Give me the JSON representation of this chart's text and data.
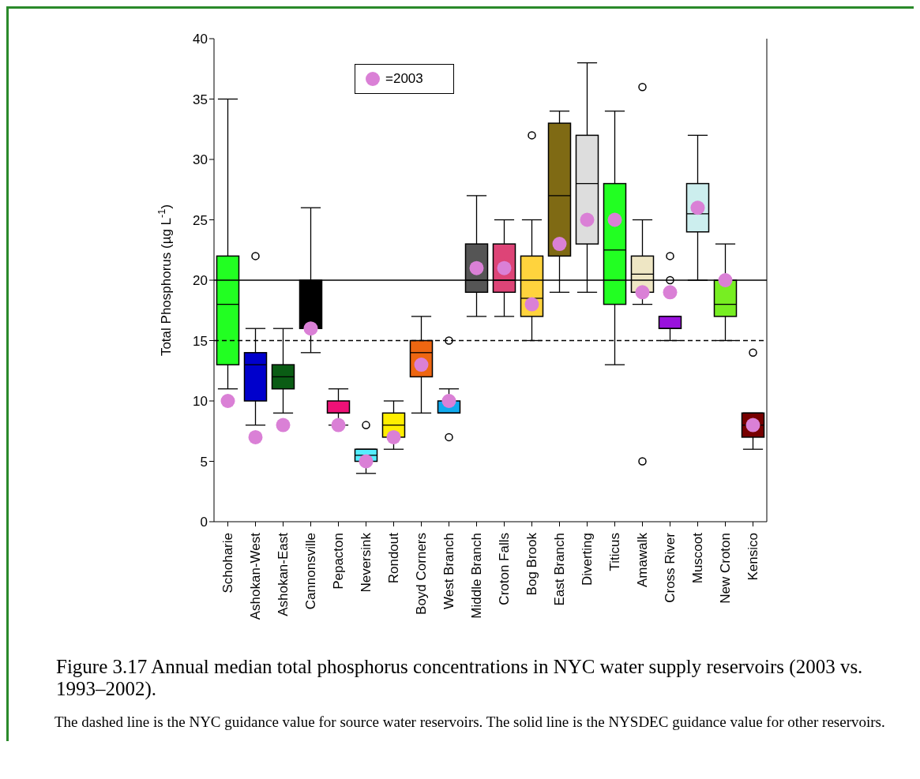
{
  "chart_data": {
    "type": "box",
    "ylabel": "Total Phosphorus (µg L$^{-1}$)",
    "categories": [
      "Schoharie",
      "Ashokan-West",
      "Ashokan-East",
      "Cannonsville",
      "Pepacton",
      "Neversink",
      "Rondout",
      "Boyd Corners",
      "West Branch",
      "Middle Branch",
      "Croton Falls",
      "Bog Brook",
      "East Branch",
      "Diverting",
      "Titicus",
      "Amawalk",
      "Cross River",
      "Muscoot",
      "New Croton",
      "Kensico"
    ],
    "colors": [
      "#22ff22",
      "#0000cc",
      "#0a5c14",
      "#000000",
      "#ee1177",
      "#55eeff",
      "#ffee00",
      "#ee6611",
      "#11aaee",
      "#555555",
      "#dd4477",
      "#ffd33d",
      "#7f6a14",
      "#dddddd",
      "#22ff22",
      "#eee6c4",
      "#9911dd",
      "#cceeee",
      "#77ee22",
      "#770000"
    ],
    "boxes": [
      {
        "low": 11,
        "q1": 13,
        "median": 18,
        "q3": 22,
        "high": 35
      },
      {
        "low": 8,
        "q1": 10,
        "median": 13,
        "q3": 14,
        "high": 16,
        "outliers": [
          22
        ]
      },
      {
        "low": 9,
        "q1": 11,
        "median": 12,
        "q3": 13,
        "high": 16
      },
      {
        "low": 14,
        "q1": 16,
        "median": 20,
        "q3": 20,
        "high": 26
      },
      {
        "low": 8,
        "q1": 9,
        "median": 9,
        "q3": 10,
        "high": 11
      },
      {
        "low": 4,
        "q1": 5,
        "median": 5.5,
        "q3": 6,
        "high": 6,
        "outliers": [
          8
        ]
      },
      {
        "low": 6,
        "q1": 7,
        "median": 8,
        "q3": 9,
        "high": 10
      },
      {
        "low": 9,
        "q1": 12,
        "median": 14,
        "q3": 15,
        "high": 17
      },
      {
        "low": 9,
        "q1": 9,
        "median": 9,
        "q3": 10,
        "high": 11,
        "outliers": [
          15,
          7
        ]
      },
      {
        "low": 17,
        "q1": 19,
        "median": 20,
        "q3": 23,
        "high": 27
      },
      {
        "low": 17,
        "q1": 19,
        "median": 20,
        "q3": 23,
        "high": 25
      },
      {
        "low": 15,
        "q1": 17,
        "median": 18.5,
        "q3": 22,
        "high": 25,
        "outliers": [
          32
        ]
      },
      {
        "low": 19,
        "q1": 22,
        "median": 27,
        "q3": 33,
        "high": 34
      },
      {
        "low": 19,
        "q1": 23,
        "median": 28,
        "q3": 32,
        "high": 38
      },
      {
        "low": 13,
        "q1": 18,
        "median": 22.5,
        "q3": 28,
        "high": 34
      },
      {
        "low": 18,
        "q1": 19,
        "median": 20.5,
        "q3": 22,
        "high": 25,
        "outliers": [
          36,
          5
        ]
      },
      {
        "low": 15,
        "q1": 16,
        "median": 16,
        "q3": 17,
        "high": 17,
        "outliers": [
          22,
          20
        ]
      },
      {
        "low": 20,
        "q1": 24,
        "median": 25.5,
        "q3": 28,
        "high": 32
      },
      {
        "low": 15,
        "q1": 17,
        "median": 18,
        "q3": 20,
        "high": 23
      },
      {
        "low": 6,
        "q1": 7,
        "median": 8,
        "q3": 9,
        "high": 9,
        "outliers": [
          14
        ]
      }
    ],
    "series": [
      {
        "name": "=2003",
        "type": "scatter",
        "color": "#da80d6",
        "x": [
          "Schoharie",
          "Ashokan-West",
          "Ashokan-East",
          "Cannonsville",
          "Pepacton",
          "Neversink",
          "Rondout",
          "Boyd Corners",
          "West Branch",
          "Middle Branch",
          "Croton Falls",
          "Bog Brook",
          "East Branch",
          "Diverting",
          "Titicus",
          "Amawalk",
          "Cross River",
          "Muscoot",
          "New Croton",
          "Kensico"
        ],
        "values": [
          10,
          7,
          8,
          16,
          8,
          5,
          7,
          13,
          10,
          21,
          21,
          18,
          23,
          25,
          25,
          19,
          19,
          26,
          20,
          8
        ]
      }
    ],
    "marker": "circle",
    "ylim": [
      0,
      40
    ],
    "yticks": [
      0,
      5,
      10,
      15,
      20,
      25,
      30,
      35,
      40
    ],
    "grid": false,
    "legend": "top left",
    "ref_lines": [
      {
        "axis": "y",
        "value": 20,
        "line_style": "solid",
        "color": "#000000"
      },
      {
        "axis": "y",
        "value": 15,
        "line_style": "dashed",
        "color": "#000000"
      }
    ],
    "annotations": [
      "Figure 3.17  Annual median total phosphorus concentrations in NYC water supply reservoirs (2003 vs. 1993–2002).",
      "The dashed line is the NYC guidance value for source water reservoirs.  The solid line is the NYSDEC guidance value for other reservoirs."
    ]
  }
}
